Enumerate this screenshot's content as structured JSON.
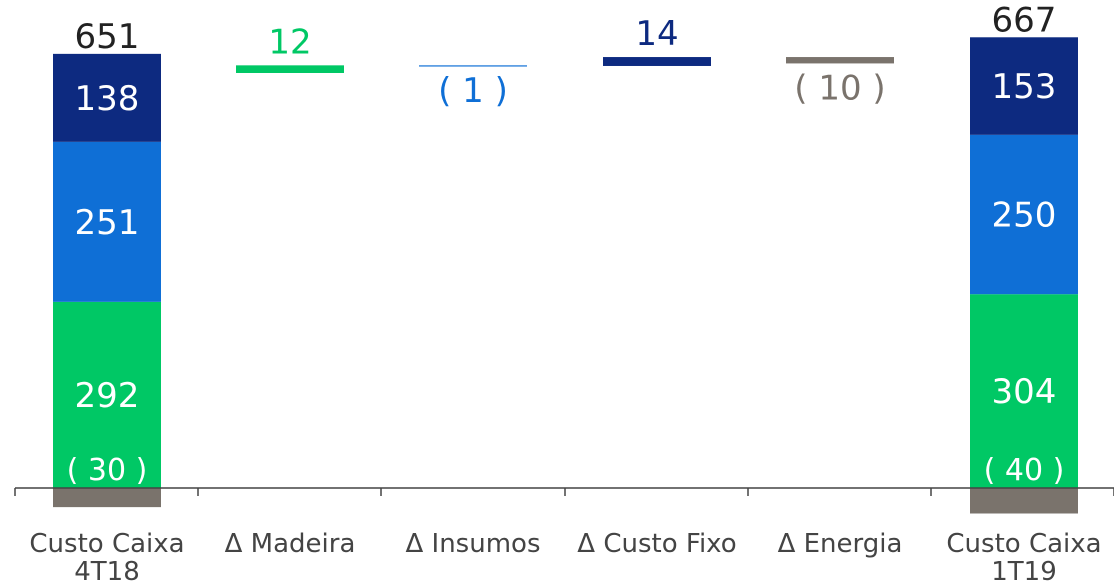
{
  "colors": {
    "madeira": "#00c865",
    "insumos": "#0f6fd6",
    "custo_fixo": "#0d2a80",
    "energia": "#7a736c",
    "axis": "#444444",
    "dark_text": "#222222",
    "white": "#ffffff"
  },
  "chart_data": {
    "type": "bar",
    "subtype": "waterfall",
    "categories": [
      "Custo Caixa 4T18",
      "Δ Madeira",
      "Δ Insumos",
      "Δ Custo Fixo",
      "Δ Energia",
      "Custo Caixa 1T19"
    ],
    "category_lines": [
      [
        "Custo Caixa",
        "4T18"
      ],
      [
        "Δ Madeira"
      ],
      [
        "Δ Insumos"
      ],
      [
        "Δ Custo Fixo"
      ],
      [
        "Δ Energia"
      ],
      [
        "Custo Caixa",
        "1T19"
      ]
    ],
    "components": [
      "Madeira",
      "Insumos",
      "Custo Fixo",
      "Energia"
    ],
    "stacks": [
      {
        "category": "Custo Caixa 4T18",
        "total": 651,
        "total_label": "651",
        "segments": [
          {
            "component": "Energia",
            "value": -30,
            "label": "( 30 )"
          },
          {
            "component": "Madeira",
            "value": 292,
            "label": "292"
          },
          {
            "component": "Insumos",
            "value": 251,
            "label": "251"
          },
          {
            "component": "Custo Fixo",
            "value": 138,
            "label": "138"
          }
        ]
      },
      {
        "category": "Custo Caixa 1T19",
        "total": 667,
        "total_label": "667",
        "segments": [
          {
            "component": "Energia",
            "value": -40,
            "label": "( 40 )"
          },
          {
            "component": "Madeira",
            "value": 304,
            "label": "304"
          },
          {
            "component": "Insumos",
            "value": 250,
            "label": "250"
          },
          {
            "component": "Custo Fixo",
            "value": 153,
            "label": "153"
          }
        ]
      }
    ],
    "deltas": [
      {
        "category": "Δ Madeira",
        "component": "Madeira",
        "value": 12,
        "label": "12"
      },
      {
        "category": "Δ Insumos",
        "component": "Insumos",
        "value": -1,
        "label": "( 1 )"
      },
      {
        "category": "Δ Custo Fixo",
        "component": "Custo Fixo",
        "value": 14,
        "label": "14"
      },
      {
        "category": "Δ Energia",
        "component": "Energia",
        "value": -10,
        "label": "( 10 )"
      }
    ],
    "ylim": [
      -45,
      710
    ],
    "grid": false,
    "legend": "none",
    "title": "",
    "xlabel": "",
    "ylabel": ""
  }
}
